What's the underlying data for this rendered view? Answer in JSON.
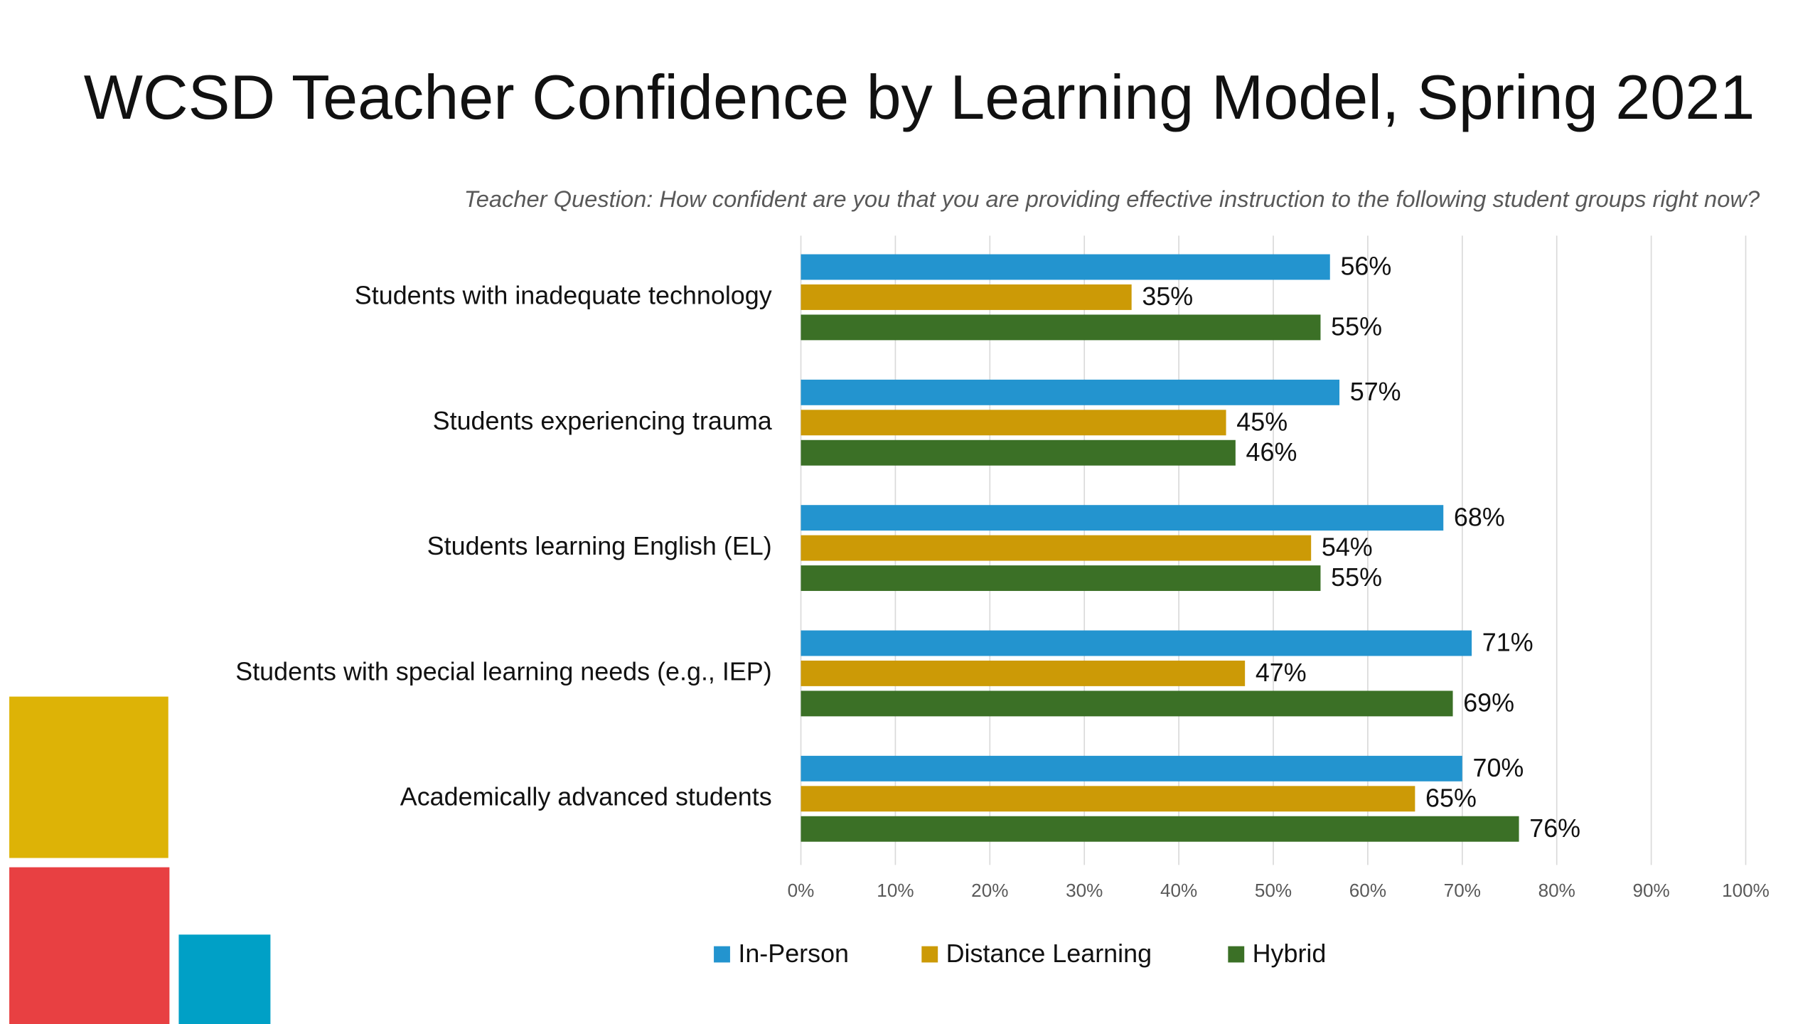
{
  "chart_data": {
    "type": "bar",
    "orientation": "horizontal",
    "title": "WCSD Teacher Confidence by Learning Model, Spring 2021",
    "subtitle": "Teacher Question: How confident are you that you are providing effective instruction to the following student groups right now?",
    "categories": [
      "Students with inadequate technology",
      "Students experiencing trauma",
      "Students learning English (EL)",
      "Students with special learning needs (e.g., IEP)",
      "Academically advanced students"
    ],
    "series": [
      {
        "name": "In-Person",
        "color": "#2394cf",
        "values": [
          56,
          57,
          68,
          71,
          70
        ],
        "value_labels": [
          "56%",
          "57%",
          "68%",
          "71%",
          "70%"
        ]
      },
      {
        "name": "Distance Learning",
        "color": "#cc9a06",
        "values": [
          35,
          45,
          54,
          47,
          65
        ],
        "value_labels": [
          "35%",
          "45%",
          "54%",
          "47%",
          "65%"
        ]
      },
      {
        "name": "Hybrid",
        "color": "#3b7026",
        "values": [
          55,
          46,
          55,
          69,
          76
        ],
        "value_labels": [
          "55%",
          "46%",
          "55%",
          "69%",
          "76%"
        ]
      }
    ],
    "xlim": [
      0,
      100
    ],
    "xticks": [
      {
        "value": 0,
        "label": "0%"
      },
      {
        "value": 10,
        "label": "10%"
      },
      {
        "value": 20,
        "label": "20%"
      },
      {
        "value": 30,
        "label": "30%"
      },
      {
        "value": 40,
        "label": "40%"
      },
      {
        "value": 50,
        "label": "50%"
      },
      {
        "value": 60,
        "label": "60%"
      },
      {
        "value": 70,
        "label": "70%"
      },
      {
        "value": 80,
        "label": "80%"
      },
      {
        "value": 90,
        "label": "90%"
      },
      {
        "value": 100,
        "label": "100%"
      }
    ],
    "grid": true,
    "legend": "bottom"
  }
}
